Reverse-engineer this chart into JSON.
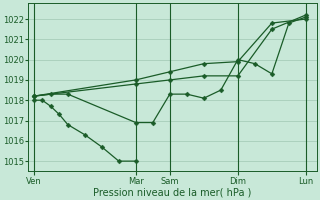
{
  "bg_color": "#c8e8d8",
  "grid_color": "#a0c8b4",
  "line_color": "#1a5c28",
  "xlabel": "Pression niveau de la mer( hPa )",
  "xtick_labels": [
    "Ven",
    "Mar",
    "Sam",
    "Dim",
    "Lun"
  ],
  "xtick_positions": [
    0,
    36,
    48,
    72,
    96
  ],
  "ylim": [
    1014.5,
    1022.8
  ],
  "yticks": [
    1015,
    1016,
    1017,
    1018,
    1019,
    1020,
    1021,
    1022
  ],
  "xlim": [
    -2,
    100
  ],
  "series_upper_envelope": {
    "x": [
      0,
      36,
      48,
      60,
      72,
      84,
      96
    ],
    "y": [
      1018.2,
      1019.0,
      1019.4,
      1019.8,
      1019.9,
      1021.8,
      1022.0
    ]
  },
  "series_lower_envelope": {
    "x": [
      0,
      36,
      48,
      60,
      72,
      84,
      96
    ],
    "y": [
      1018.2,
      1018.8,
      1019.0,
      1019.2,
      1019.2,
      1021.5,
      1022.2
    ]
  },
  "series_forecast": {
    "x": [
      0,
      6,
      12,
      36,
      42,
      48,
      54,
      60,
      66,
      72,
      78,
      84,
      90,
      96
    ],
    "y": [
      1018.2,
      1018.3,
      1018.3,
      1016.9,
      1016.9,
      1018.3,
      1018.3,
      1018.1,
      1018.5,
      1020.0,
      1019.8,
      1019.3,
      1021.8,
      1022.1
    ]
  },
  "series_actual": {
    "x": [
      0,
      3,
      6,
      9,
      12,
      18,
      24,
      30,
      36
    ],
    "y": [
      1018.0,
      1018.0,
      1017.7,
      1017.3,
      1016.8,
      1016.3,
      1015.7,
      1015.0,
      1015.0
    ]
  }
}
